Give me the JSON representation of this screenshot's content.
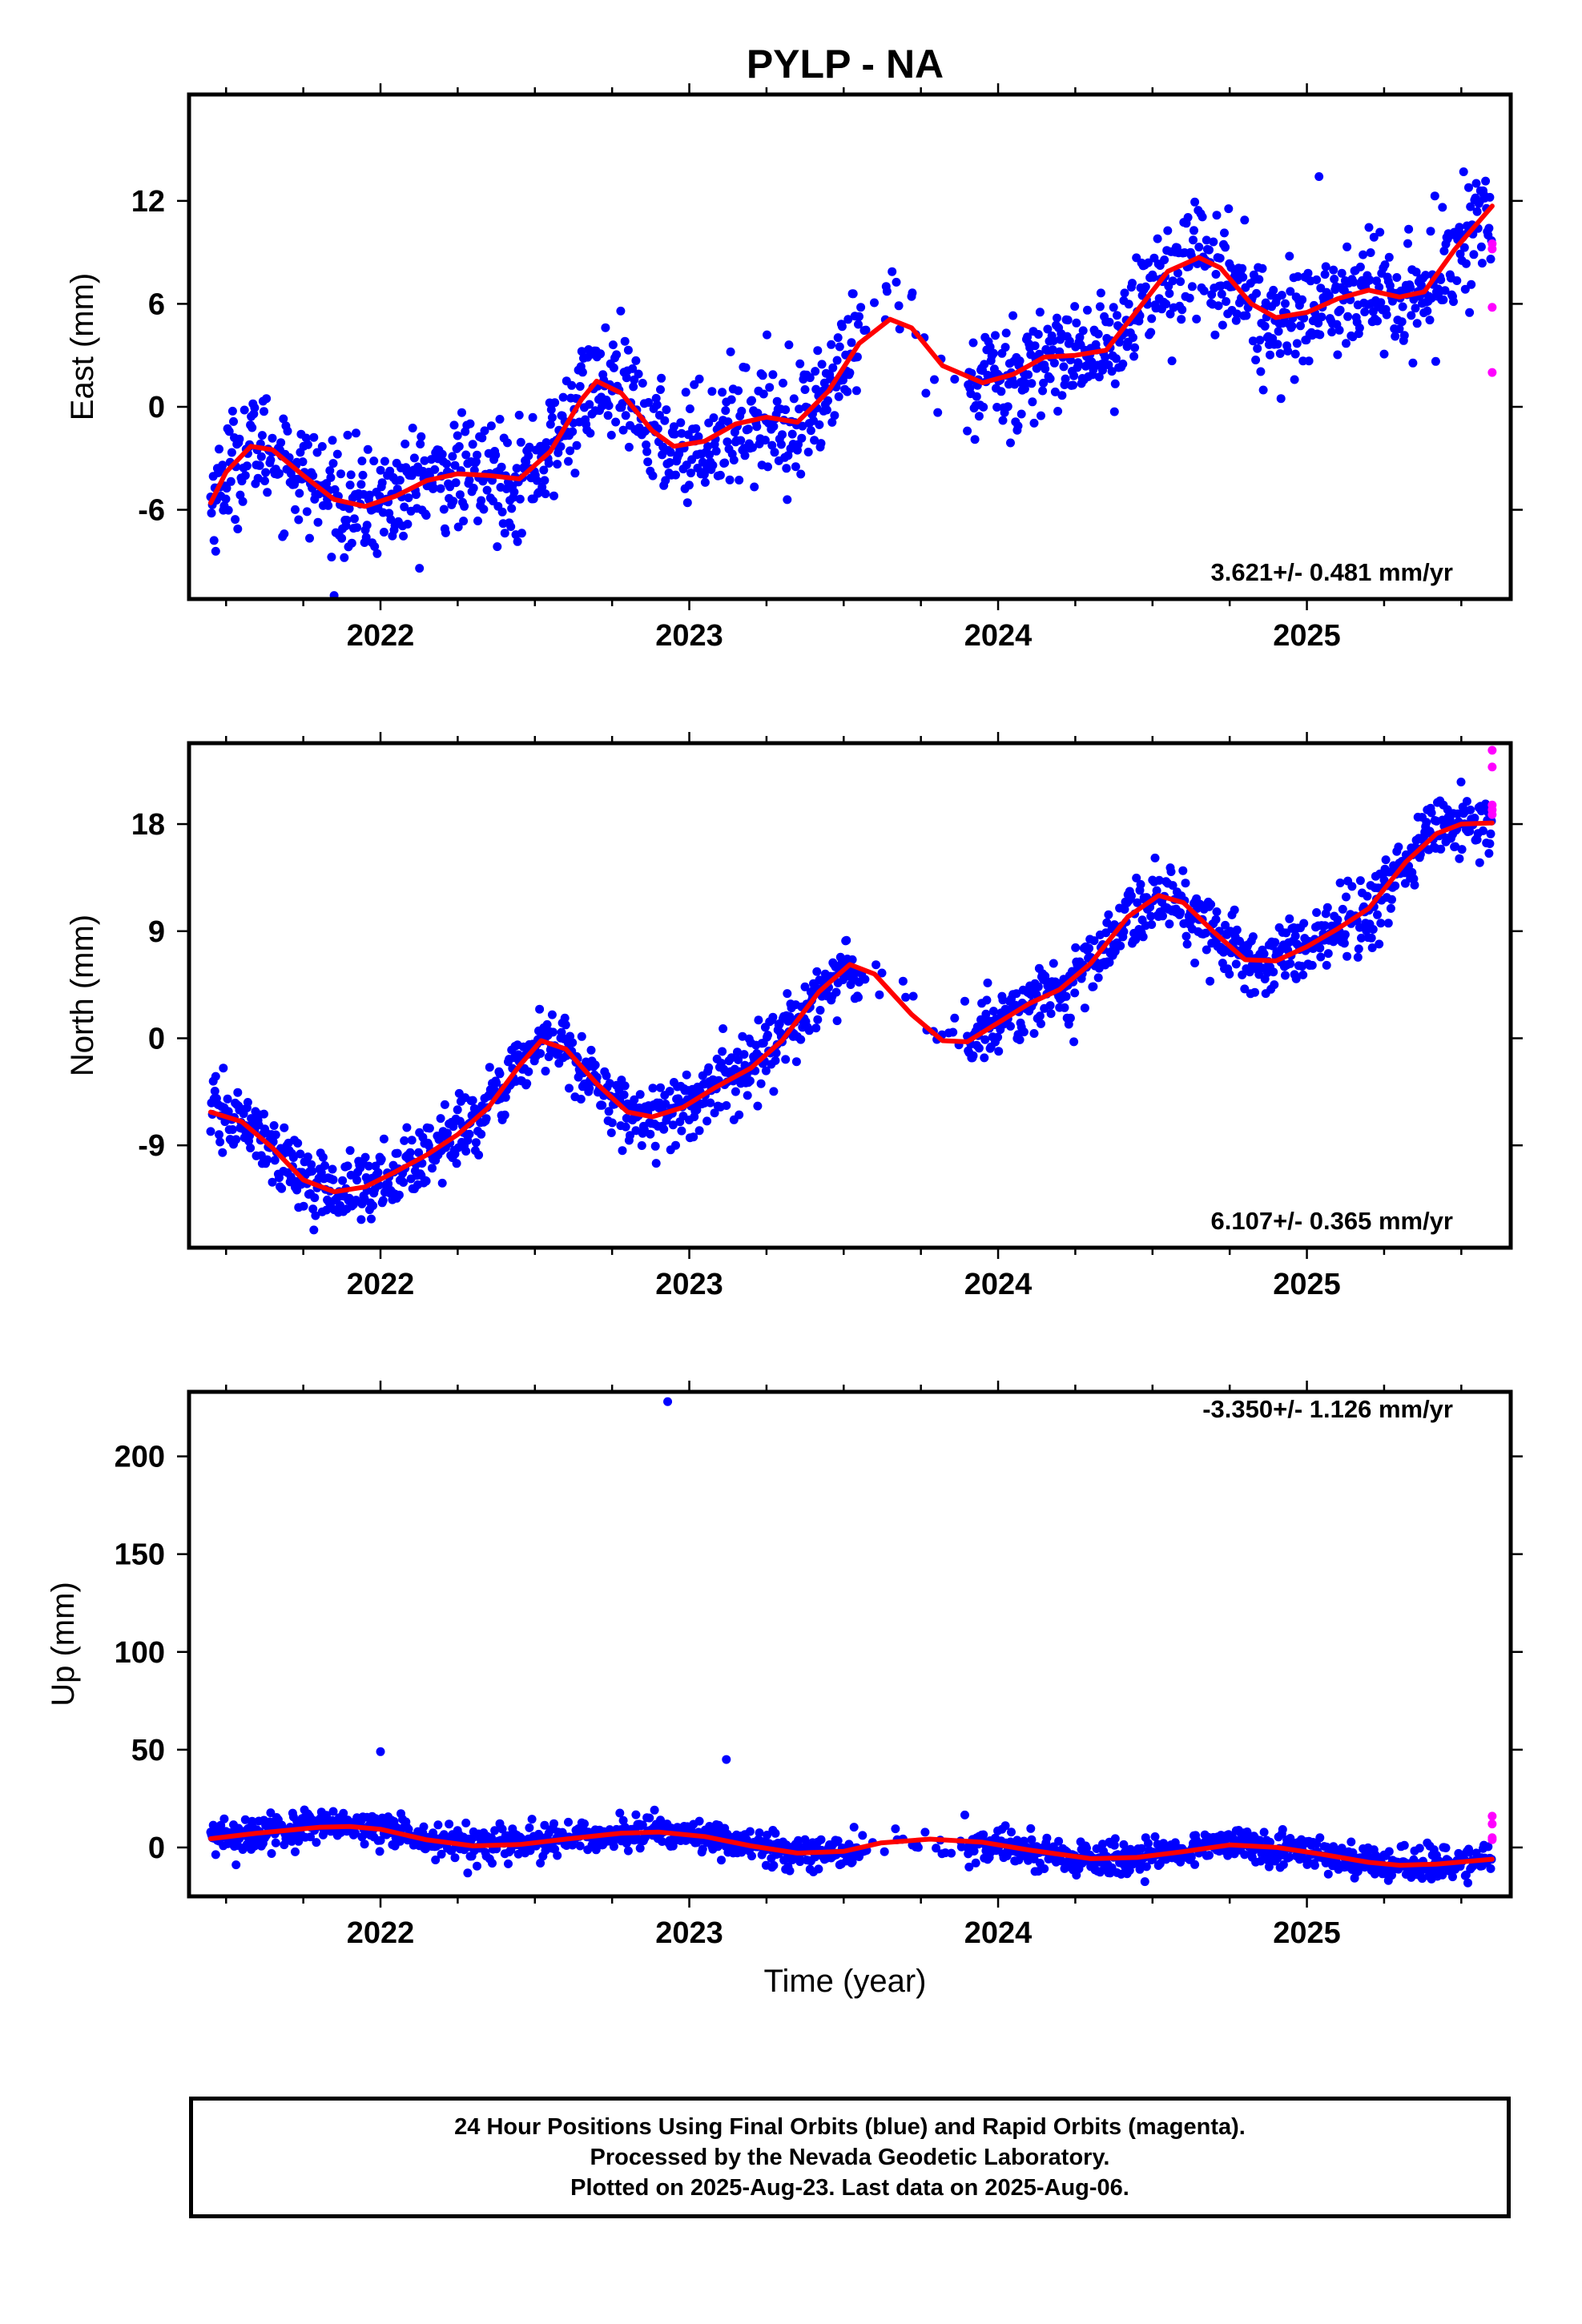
{
  "title": "PYLP - NA",
  "xlabel": "Time (year)",
  "colors": {
    "final": "#0000ff",
    "rapid": "#ff00ff",
    "fit": "#ff0000"
  },
  "footer": {
    "line1": "24 Hour Positions Using Final Orbits (blue) and Rapid Orbits (magenta).",
    "line2": "Processed by the Nevada Geodetic Laboratory.",
    "line3": "Plotted on 2025-Aug-23. Last data on 2025-Aug-06."
  },
  "chart_data": [
    {
      "type": "scatter",
      "component": "east",
      "ylabel": "East (mm)",
      "rate_label": "3.621+/- 0.481 mm/yr",
      "xlim": [
        2021.38,
        2025.66
      ],
      "ylim": [
        -11.2,
        18.2
      ],
      "xticks": [
        2022,
        2023,
        2024,
        2025
      ],
      "yticks": [
        -6,
        0,
        6,
        12
      ],
      "grid": false,
      "fit_line": [
        [
          2021.45,
          -5.6
        ],
        [
          2021.5,
          -3.8
        ],
        [
          2021.58,
          -2.3
        ],
        [
          2021.65,
          -2.5
        ],
        [
          2021.75,
          -4.0
        ],
        [
          2021.85,
          -5.4
        ],
        [
          2021.95,
          -5.8
        ],
        [
          2022.05,
          -5.2
        ],
        [
          2022.15,
          -4.3
        ],
        [
          2022.25,
          -3.9
        ],
        [
          2022.35,
          -4.0
        ],
        [
          2022.45,
          -4.2
        ],
        [
          2022.55,
          -2.6
        ],
        [
          2022.65,
          0.4
        ],
        [
          2022.7,
          1.5
        ],
        [
          2022.78,
          0.8
        ],
        [
          2022.88,
          -1.4
        ],
        [
          2022.95,
          -2.3
        ],
        [
          2023.05,
          -2.0
        ],
        [
          2023.15,
          -1.0
        ],
        [
          2023.25,
          -0.6
        ],
        [
          2023.35,
          -0.9
        ],
        [
          2023.45,
          0.9
        ],
        [
          2023.55,
          3.7
        ],
        [
          2023.65,
          5.1
        ],
        [
          2023.72,
          4.6
        ],
        [
          2023.82,
          2.4
        ],
        [
          2023.95,
          1.4
        ],
        [
          2024.05,
          1.9
        ],
        [
          2024.15,
          2.9
        ],
        [
          2024.25,
          3.0
        ],
        [
          2024.35,
          3.3
        ],
        [
          2024.45,
          5.6
        ],
        [
          2024.55,
          7.9
        ],
        [
          2024.65,
          8.7
        ],
        [
          2024.72,
          8.1
        ],
        [
          2024.82,
          6.0
        ],
        [
          2024.9,
          5.2
        ],
        [
          2025.0,
          5.5
        ],
        [
          2025.1,
          6.3
        ],
        [
          2025.2,
          6.8
        ],
        [
          2025.3,
          6.4
        ],
        [
          2025.38,
          6.7
        ],
        [
          2025.48,
          9.2
        ],
        [
          2025.6,
          11.7
        ]
      ],
      "rapid_points": [
        [
          2025.6,
          9.5
        ],
        [
          2025.6,
          9.2
        ],
        [
          2025.6,
          5.8
        ],
        [
          2025.6,
          2.0
        ]
      ]
    },
    {
      "type": "scatter",
      "component": "north",
      "ylabel": "North (mm)",
      "rate_label": "6.107+/- 0.365 mm/yr",
      "xlim": [
        2021.38,
        2025.66
      ],
      "ylim": [
        -17.6,
        24.8
      ],
      "xticks": [
        2022,
        2023,
        2024,
        2025
      ],
      "yticks": [
        -9,
        0,
        9,
        18
      ],
      "grid": false,
      "fit_line": [
        [
          2021.45,
          -6.2
        ],
        [
          2021.55,
          -7.0
        ],
        [
          2021.65,
          -9.2
        ],
        [
          2021.75,
          -11.9
        ],
        [
          2021.85,
          -12.9
        ],
        [
          2021.95,
          -12.5
        ],
        [
          2022.05,
          -11.2
        ],
        [
          2022.15,
          -9.8
        ],
        [
          2022.25,
          -8.1
        ],
        [
          2022.35,
          -5.8
        ],
        [
          2022.45,
          -2.3
        ],
        [
          2022.52,
          -0.2
        ],
        [
          2022.6,
          -0.9
        ],
        [
          2022.7,
          -3.8
        ],
        [
          2022.8,
          -6.2
        ],
        [
          2022.88,
          -6.6
        ],
        [
          2022.98,
          -5.8
        ],
        [
          2023.08,
          -4.2
        ],
        [
          2023.2,
          -2.5
        ],
        [
          2023.3,
          -0.2
        ],
        [
          2023.42,
          3.9
        ],
        [
          2023.52,
          6.2
        ],
        [
          2023.6,
          5.4
        ],
        [
          2023.72,
          2.0
        ],
        [
          2023.82,
          -0.2
        ],
        [
          2023.9,
          -0.3
        ],
        [
          2024.0,
          1.3
        ],
        [
          2024.1,
          2.9
        ],
        [
          2024.2,
          4.1
        ],
        [
          2024.3,
          6.3
        ],
        [
          2024.42,
          10.2
        ],
        [
          2024.52,
          12.0
        ],
        [
          2024.6,
          11.4
        ],
        [
          2024.7,
          8.9
        ],
        [
          2024.8,
          6.6
        ],
        [
          2024.9,
          6.5
        ],
        [
          2025.0,
          7.7
        ],
        [
          2025.1,
          9.2
        ],
        [
          2025.2,
          10.9
        ],
        [
          2025.32,
          14.8
        ],
        [
          2025.42,
          17.2
        ],
        [
          2025.5,
          18.0
        ],
        [
          2025.6,
          18.1
        ]
      ],
      "rapid_points": [
        [
          2025.6,
          24.2
        ],
        [
          2025.6,
          22.8
        ],
        [
          2025.6,
          19.6
        ],
        [
          2025.6,
          19.2
        ],
        [
          2025.6,
          18.8
        ]
      ]
    },
    {
      "type": "scatter",
      "component": "up",
      "ylabel": "Up (mm)",
      "rate_label": "-3.350+/- 1.126 mm/yr",
      "xlim": [
        2021.38,
        2025.66
      ],
      "ylim": [
        -25,
        233
      ],
      "xticks": [
        2022,
        2023,
        2024,
        2025
      ],
      "yticks": [
        0,
        50,
        100,
        150,
        200
      ],
      "grid": false,
      "fit_line": [
        [
          2021.45,
          4.5
        ],
        [
          2021.6,
          7.3
        ],
        [
          2021.8,
          10.3
        ],
        [
          2021.9,
          10.7
        ],
        [
          2022.0,
          9.3
        ],
        [
          2022.15,
          3.9
        ],
        [
          2022.3,
          0.8
        ],
        [
          2022.45,
          1.5
        ],
        [
          2022.6,
          4.3
        ],
        [
          2022.78,
          7.3
        ],
        [
          2022.9,
          7.9
        ],
        [
          2023.05,
          5.6
        ],
        [
          2023.2,
          0.8
        ],
        [
          2023.35,
          -2.9
        ],
        [
          2023.5,
          -2.0
        ],
        [
          2023.62,
          2.3
        ],
        [
          2023.78,
          4.3
        ],
        [
          2023.95,
          2.7
        ],
        [
          2024.1,
          -1.3
        ],
        [
          2024.3,
          -5.7
        ],
        [
          2024.45,
          -5.1
        ],
        [
          2024.6,
          -2.1
        ],
        [
          2024.75,
          1.3
        ],
        [
          2024.9,
          0.1
        ],
        [
          2025.05,
          -3.5
        ],
        [
          2025.2,
          -7.6
        ],
        [
          2025.3,
          -9.1
        ],
        [
          2025.42,
          -8.5
        ],
        [
          2025.6,
          -6.0
        ]
      ],
      "outliers": [
        [
          2022.93,
          228
        ],
        [
          2022.0,
          49
        ],
        [
          2023.12,
          45
        ]
      ],
      "rapid_points": [
        [
          2025.6,
          16
        ],
        [
          2025.6,
          12
        ],
        [
          2025.6,
          5
        ],
        [
          2025.6,
          4
        ]
      ]
    }
  ]
}
